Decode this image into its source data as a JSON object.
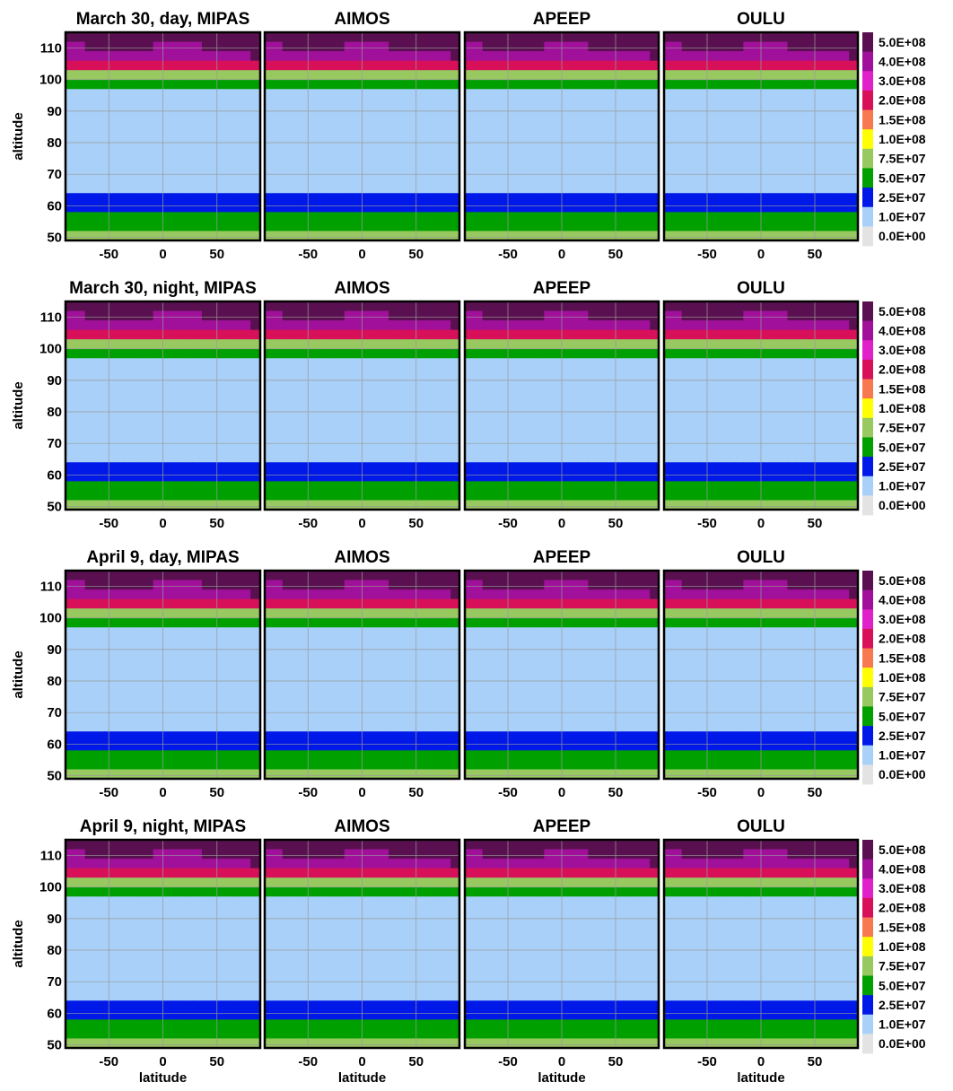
{
  "chart_data": {
    "type": "heatmap",
    "xlabel": "latitude",
    "ylabel": "altitude",
    "xlim": [
      -90,
      90
    ],
    "ylim": [
      49,
      115
    ],
    "x_ticks": [
      -50,
      0,
      50
    ],
    "y_ticks": [
      50,
      60,
      70,
      80,
      90,
      100,
      110
    ],
    "colorbar": {
      "labels": [
        "5.0E+08",
        "4.0E+08",
        "3.0E+08",
        "2.0E+08",
        "1.5E+08",
        "1.0E+08",
        "7.5E+07",
        "5.0E+07",
        "2.5E+07",
        "1.0E+07",
        "0.0E+00"
      ],
      "levels": [
        500000000.0,
        400000000.0,
        300000000.0,
        200000000.0,
        150000000.0,
        100000000.0,
        75000000.0,
        50000000.0,
        25000000.0,
        10000000.0,
        0
      ],
      "colors": [
        "#5a1050",
        "#a0109a",
        "#e020c8",
        "#d8105a",
        "#f87850",
        "#ffff00",
        "#98c860",
        "#00a000",
        "#0018e8",
        "#a8d0f8",
        "#e3e3e3"
      ]
    },
    "rows": [
      {
        "panels": [
          {
            "title": "March 30, day, MIPAS",
            "grid": [
              "00000000000000000000",
              "11000000011111000000",
              "11111111111111111110",
              "33333333333333333333",
              "66666666666666666666",
              "77777777777777777777",
              "99999999999999999999",
              "99999999999999999999",
              "99999999999999999999",
              "99999999999999999999",
              "99999999999999999999",
              "99999999999999999999",
              "99999999999999999999",
              "99999999999999999999",
              "99999999999999999999",
              "99999999999999999999",
              "99999999999999999999",
              "88888888888888888888",
              "88888888888888888888",
              "77777777777777777777",
              "77777777777777777777",
              "66666666666666666666"
            ]
          },
          {
            "title": "AIMOS",
            "grid": [
              "0000000000000000000000",
              "1100000001111100000000",
              "1111111111111111111110",
              "3333333333333333333333",
              "6666666666666666666666",
              "7777777777777777777777",
              "9999999999999999999999",
              "9999999999999999999999",
              "9999999999999999999999",
              "9999999999999999999999",
              "9999999999999999999999",
              "9999999999999999999999",
              "9999999999999999999999",
              "9999999999999999999999",
              "9999999999999999999999",
              "9999999999999999999999",
              "9999999999999999999999",
              "8888888888888888888888",
              "8888888888888888888888",
              "7777777777777777777777",
              "7777777777777777777777",
              "6666666666666666666666"
            ]
          },
          {
            "title": "APEEP",
            "grid": [
              "0000000000000000000000",
              "1100000001111100000000",
              "1111111111111111111110",
              "3333333333333333333333",
              "6666666666666666666666",
              "7777777777777777777777",
              "9999999999999999999999",
              "9999999999999999999999",
              "9999999999999999999999",
              "9999999999999999999999",
              "9999999999999999999999",
              "9999999999999999999999",
              "9999999999999999999999",
              "9999999999999999999999",
              "9999999999999999999999",
              "9999999999999999999999",
              "9999999999999999999999",
              "8888888888888888888888",
              "8888888888888888888888",
              "7777777777777777777777",
              "7777777777777777777777",
              "6666666666666666666666"
            ]
          },
          {
            "title": "OULU",
            "grid": [
              "0000000000000000000000",
              "1100000001111100000000",
              "1111111111111111111110",
              "3333333333333333333333",
              "6666666666666666666666",
              "7777777777777777777777",
              "9999999999999999999999",
              "9999999999999999999999",
              "9999999999999999999999",
              "9999999999999999999999",
              "9999999999999999999999",
              "9999999999999999999999",
              "9999999999999999999999",
              "9999999999999999999999",
              "9999999999999999999999",
              "9999999999999999999999",
              "9999999999999999999999",
              "8888888888888888888888",
              "8888888888888888888888",
              "7777777777777777777777",
              "7777777777777777777777",
              "6666666666666666666666"
            ]
          }
        ]
      },
      {
        "panels": [
          {
            "title": "March 30, night, MIPAS",
            "grid": [
              "00000000000000000000",
              "11000000011111000000",
              "11111111111111111110",
              "33333333333333333333",
              "66666666666666666666",
              "77777777777777777777",
              "99999999999999999999",
              "99999999999999999999",
              "99999999999999999999",
              "99999999999999999999",
              "99999999999999999999",
              "99999999999999999999",
              "99999999999999999999",
              "99999999999999999999",
              "99999999999999999999",
              "99999999999999999999",
              "99999999999999999999",
              "88888888888888888888",
              "88888888888888888888",
              "77777777777777777777",
              "77777777777777777777",
              "66666666666666666666"
            ]
          },
          {
            "title": "AIMOS",
            "grid": [
              "0000000000000000000000",
              "1100000001111100000000",
              "1111111111111111111110",
              "3333333333333333333333",
              "6666666666666666666666",
              "7777777777777777777777",
              "9999999999999999999999",
              "9999999999999999999999",
              "9999999999999999999999",
              "9999999999999999999999",
              "9999999999999999999999",
              "9999999999999999999999",
              "9999999999999999999999",
              "9999999999999999999999",
              "9999999999999999999999",
              "9999999999999999999999",
              "9999999999999999999999",
              "8888888888888888888888",
              "8888888888888888888888",
              "7777777777777777777777",
              "7777777777777777777777",
              "6666666666666666666666"
            ]
          },
          {
            "title": "APEEP",
            "grid": [
              "0000000000000000000000",
              "1100000001111100000000",
              "1111111111111111111110",
              "3333333333333333333333",
              "6666666666666666666666",
              "7777777777777777777777",
              "9999999999999999999999",
              "9999999999999999999999",
              "9999999999999999999999",
              "9999999999999999999999",
              "9999999999999999999999",
              "9999999999999999999999",
              "9999999999999999999999",
              "9999999999999999999999",
              "9999999999999999999999",
              "9999999999999999999999",
              "9999999999999999999999",
              "8888888888888888888888",
              "8888888888888888888888",
              "7777777777777777777777",
              "7777777777777777777777",
              "6666666666666666666666"
            ]
          },
          {
            "title": "OULU",
            "grid": [
              "0000000000000000000000",
              "1100000001111100000000",
              "1111111111111111111110",
              "3333333333333333333333",
              "6666666666666666666666",
              "7777777777777777777777",
              "9999999999999999999999",
              "9999999999999999999999",
              "9999999999999999999999",
              "9999999999999999999999",
              "9999999999999999999999",
              "9999999999999999999999",
              "9999999999999999999999",
              "9999999999999999999999",
              "9999999999999999999999",
              "9999999999999999999999",
              "9999999999999999999999",
              "8888888888888888888888",
              "8888888888888888888888",
              "7777777777777777777777",
              "7777777777777777777777",
              "6666666666666666666666"
            ]
          }
        ]
      },
      {
        "panels": [
          {
            "title": "April 9, day, MIPAS",
            "grid": [
              "00000000000000000000",
              "11000000011111000000",
              "11111111111111111110",
              "33333333333333333333",
              "66666666666666666666",
              "77777777777777777777",
              "99999999999999999999",
              "99999999999999999999",
              "99999999999999999999",
              "99999999999999999999",
              "99999999999999999999",
              "99999999999999999999",
              "99999999999999999999",
              "99999999999999999999",
              "99999999999999999999",
              "99999999999999999999",
              "99999999999999999999",
              "88888888888888888888",
              "88888888888888888888",
              "77777777777777777777",
              "77777777777777777777",
              "66666666666666666666"
            ]
          },
          {
            "title": "AIMOS",
            "grid": [
              "0000000000000000000000",
              "1100000001111100000000",
              "1111111111111111111110",
              "3333333333333333333333",
              "6666666666666666666666",
              "7777777777777777777777",
              "9999999999999999999999",
              "9999999999999999999999",
              "9999999999999999999999",
              "9999999999999999999999",
              "9999999999999999999999",
              "9999999999999999999999",
              "9999999999999999999999",
              "9999999999999999999999",
              "9999999999999999999999",
              "9999999999999999999999",
              "9999999999999999999999",
              "8888888888888888888888",
              "8888888888888888888888",
              "7777777777777777777777",
              "7777777777777777777777",
              "6666666666666666666666"
            ]
          },
          {
            "title": "APEEP",
            "grid": [
              "0000000000000000000000",
              "1100000001111100000000",
              "1111111111111111111110",
              "3333333333333333333333",
              "6666666666666666666666",
              "7777777777777777777777",
              "9999999999999999999999",
              "9999999999999999999999",
              "9999999999999999999999",
              "9999999999999999999999",
              "9999999999999999999999",
              "9999999999999999999999",
              "9999999999999999999999",
              "9999999999999999999999",
              "9999999999999999999999",
              "9999999999999999999999",
              "9999999999999999999999",
              "8888888888888888888888",
              "8888888888888888888888",
              "7777777777777777777777",
              "7777777777777777777777",
              "6666666666666666666666"
            ]
          },
          {
            "title": "OULU",
            "grid": [
              "0000000000000000000000",
              "1100000001111100000000",
              "1111111111111111111110",
              "3333333333333333333333",
              "6666666666666666666666",
              "7777777777777777777777",
              "9999999999999999999999",
              "9999999999999999999999",
              "9999999999999999999999",
              "9999999999999999999999",
              "9999999999999999999999",
              "9999999999999999999999",
              "9999999999999999999999",
              "9999999999999999999999",
              "9999999999999999999999",
              "9999999999999999999999",
              "9999999999999999999999",
              "8888888888888888888888",
              "8888888888888888888888",
              "7777777777777777777777",
              "7777777777777777777777",
              "6666666666666666666666"
            ]
          }
        ]
      },
      {
        "panels": [
          {
            "title": "April 9, night, MIPAS",
            "grid": [
              "00000000000000000000",
              "11000000011111000000",
              "11111111111111111110",
              "33333333333333333333",
              "66666666666666666666",
              "77777777777777777777",
              "99999999999999999999",
              "99999999999999999999",
              "99999999999999999999",
              "99999999999999999999",
              "99999999999999999999",
              "99999999999999999999",
              "99999999999999999999",
              "99999999999999999999",
              "99999999999999999999",
              "99999999999999999999",
              "99999999999999999999",
              "88888888888888888888",
              "88888888888888888888",
              "77777777777777777777",
              "77777777777777777777",
              "66666666666666666666"
            ]
          },
          {
            "title": "AIMOS",
            "grid": [
              "0000000000000000000000",
              "1100000001111100000000",
              "1111111111111111111110",
              "3333333333333333333333",
              "6666666666666666666666",
              "7777777777777777777777",
              "9999999999999999999999",
              "9999999999999999999999",
              "9999999999999999999999",
              "9999999999999999999999",
              "9999999999999999999999",
              "9999999999999999999999",
              "9999999999999999999999",
              "9999999999999999999999",
              "9999999999999999999999",
              "9999999999999999999999",
              "9999999999999999999999",
              "8888888888888888888888",
              "8888888888888888888888",
              "7777777777777777777777",
              "7777777777777777777777",
              "6666666666666666666666"
            ]
          },
          {
            "title": "APEEP",
            "grid": [
              "0000000000000000000000",
              "1100000001111100000000",
              "1111111111111111111110",
              "3333333333333333333333",
              "6666666666666666666666",
              "7777777777777777777777",
              "9999999999999999999999",
              "9999999999999999999999",
              "9999999999999999999999",
              "9999999999999999999999",
              "9999999999999999999999",
              "9999999999999999999999",
              "9999999999999999999999",
              "9999999999999999999999",
              "9999999999999999999999",
              "9999999999999999999999",
              "9999999999999999999999",
              "8888888888888888888888",
              "8888888888888888888888",
              "7777777777777777777777",
              "7777777777777777777777",
              "6666666666666666666666"
            ]
          },
          {
            "title": "OULU",
            "grid": [
              "0000000000000000000000",
              "1100000001111100000000",
              "1111111111111111111110",
              "3333333333333333333333",
              "6666666666666666666666",
              "7777777777777777777777",
              "9999999999999999999999",
              "9999999999999999999999",
              "9999999999999999999999",
              "9999999999999999999999",
              "9999999999999999999999",
              "9999999999999999999999",
              "9999999999999999999999",
              "9999999999999999999999",
              "9999999999999999999999",
              "9999999999999999999999",
              "9999999999999999999999",
              "8888888888888888888888",
              "8888888888888888888888",
              "7777777777777777777777",
              "7777777777777777777777",
              "6666666666666666666666"
            ]
          }
        ]
      }
    ]
  }
}
